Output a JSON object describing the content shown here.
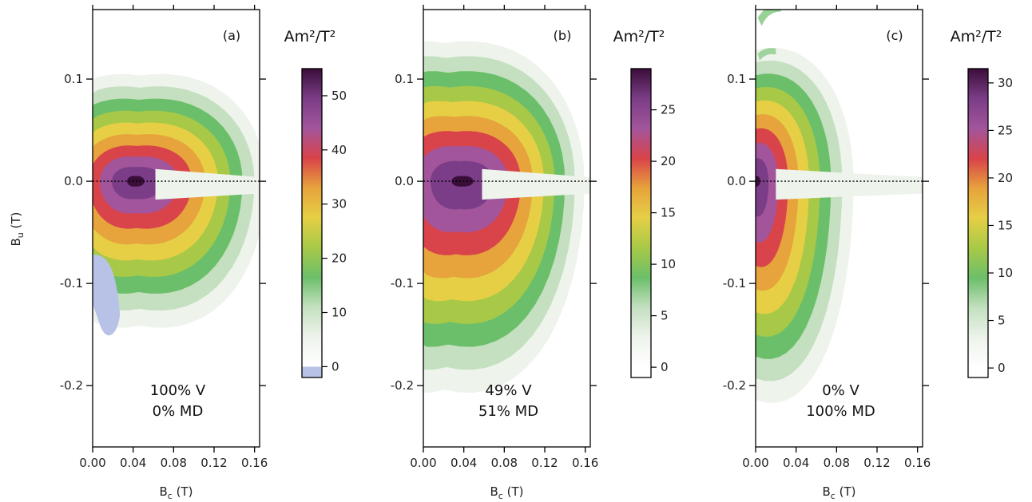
{
  "chart_data": [
    {
      "type": "heatmap",
      "panel_label": "(a)",
      "colorbar_title": "Am²/T²",
      "colorbar_range": [
        -2,
        55
      ],
      "colorbar_ticks": [
        0,
        10,
        20,
        30,
        40,
        50
      ],
      "has_negative": true,
      "xlabel": "B",
      "xlabel_sub": "c",
      "xlabel_unit": " (T)",
      "ylabel": "B",
      "ylabel_sub": "u",
      "ylabel_unit": " (T)",
      "xlim": [
        0,
        0.165
      ],
      "ylim": [
        -0.26,
        0.168
      ],
      "xticks": [
        "0.00",
        "0.04",
        "0.08",
        "0.12",
        "0.16"
      ],
      "yticks": [
        "0.1",
        "0.0",
        "-0.1",
        "-0.2"
      ],
      "ytick_values": [
        0.1,
        0,
        -0.1,
        -0.2
      ],
      "xtick_values": [
        0,
        0.04,
        0.08,
        0.12,
        0.16
      ],
      "peak": {
        "bc": 0.042,
        "bu": 0.0,
        "value": 54
      },
      "annotation": [
        "100% V",
        "0% MD"
      ]
    },
    {
      "type": "heatmap",
      "panel_label": "(b)",
      "colorbar_title": "Am²/T²",
      "colorbar_range": [
        -1,
        29
      ],
      "colorbar_ticks": [
        0,
        5,
        10,
        15,
        20,
        25
      ],
      "has_negative": false,
      "xlabel": "B",
      "xlabel_sub": "c",
      "xlabel_unit": " (T)",
      "ylabel": "",
      "xlim": [
        0,
        0.165
      ],
      "ylim": [
        -0.26,
        0.168
      ],
      "xticks": [
        "0.00",
        "0.04",
        "0.08",
        "0.12",
        "0.16"
      ],
      "yticks": [
        "0.1",
        "0.0",
        "-0.1",
        "-0.2"
      ],
      "ytick_values": [
        0.1,
        0,
        -0.1,
        -0.2
      ],
      "xtick_values": [
        0,
        0.04,
        0.08,
        0.12,
        0.16
      ],
      "peak": {
        "bc": 0.038,
        "bu": 0.0,
        "value": 29
      },
      "annotation": [
        "49% V",
        "51% MD"
      ]
    },
    {
      "type": "heatmap",
      "panel_label": "(c)",
      "colorbar_title": "Am²/T²",
      "colorbar_range": [
        -1,
        31.5
      ],
      "colorbar_ticks": [
        0,
        5,
        10,
        15,
        20,
        25,
        30
      ],
      "has_negative": false,
      "xlabel": "B",
      "xlabel_sub": "c",
      "xlabel_unit": " (T)",
      "ylabel": "",
      "xlim": [
        0,
        0.165
      ],
      "ylim": [
        -0.26,
        0.168
      ],
      "xticks": [
        "0.00",
        "0.04",
        "0.08",
        "0.12",
        "0.16"
      ],
      "yticks": [
        "0.1",
        "0.0",
        "-0.1",
        "-0.2"
      ],
      "ytick_values": [
        0.1,
        0,
        -0.1,
        -0.2
      ],
      "xtick_values": [
        0,
        0.04,
        0.08,
        0.12,
        0.16
      ],
      "peak": {
        "bc": 0.0,
        "bu": 0.0,
        "value": 31
      },
      "annotation": [
        "0% V",
        "100% MD"
      ]
    }
  ],
  "colors": {
    "scale": [
      "#ffffff",
      "#eef3ec",
      "#c4e0c0",
      "#6cbf6a",
      "#a7c947",
      "#e6cf45",
      "#e7a33c",
      "#d9434a",
      "#a2559b",
      "#7b3d87",
      "#3b0e3a"
    ],
    "negative": "#b8c2e6"
  }
}
